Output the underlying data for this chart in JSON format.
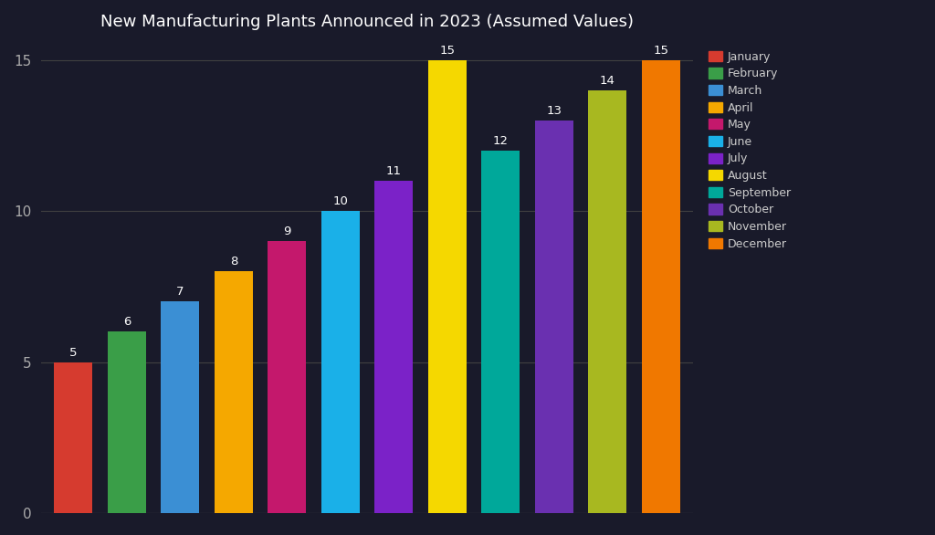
{
  "title": "New Manufacturing Plants Announced in 2023 (Assumed Values)",
  "months": [
    "January",
    "February",
    "March",
    "April",
    "May",
    "June",
    "July",
    "August",
    "September",
    "October",
    "November",
    "December"
  ],
  "values": [
    5,
    6,
    7,
    8,
    9,
    10,
    11,
    15,
    12,
    13,
    14,
    15
  ],
  "bar_colors": [
    "#d63b2f",
    "#3a9e48",
    "#3b8fd4",
    "#f5a800",
    "#c4186c",
    "#1ab0e8",
    "#7b22c8",
    "#f5d800",
    "#00a89a",
    "#6a30b0",
    "#a8b820",
    "#f07800"
  ],
  "background_color": "#191a2a",
  "text_color": "#cccccc",
  "grid_color": "#404040",
  "ylim_max": 15.6,
  "yticks": [
    0,
    5,
    10,
    15
  ],
  "title_fontsize": 13,
  "label_fontsize": 10,
  "legend_fontsize": 9,
  "bar_width": 0.72
}
